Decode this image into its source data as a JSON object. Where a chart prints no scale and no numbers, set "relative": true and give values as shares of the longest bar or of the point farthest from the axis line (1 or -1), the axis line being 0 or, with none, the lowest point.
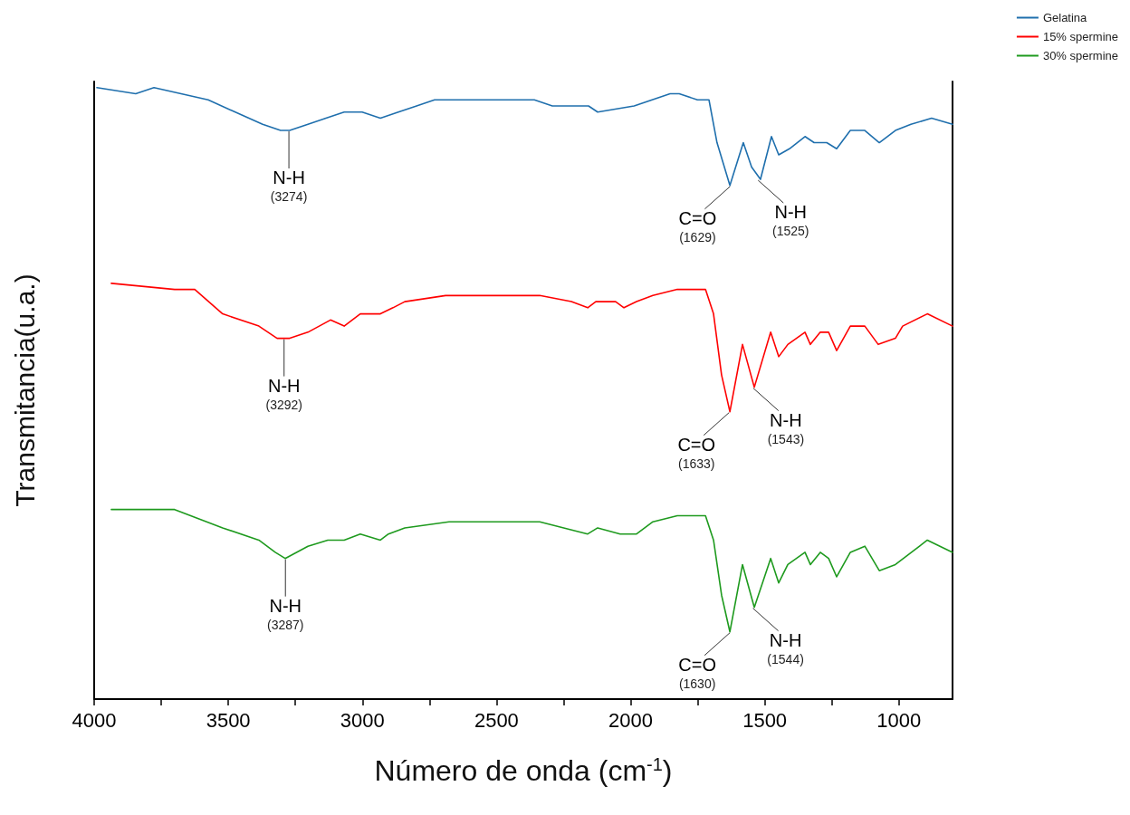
{
  "chart_data": {
    "type": "line",
    "relative": true,
    "xlabel": "Número de onda (cm$^{-1}$)",
    "ylabel": "Transmitancia(u.a.)",
    "xlim": [
      4000,
      800
    ],
    "xticks": [
      4000,
      {
        "value": 3750,
        "label": null
      },
      3500,
      {
        "value": 3250,
        "label": null
      },
      3000,
      {
        "value": 2750,
        "label": null
      },
      2500,
      {
        "value": 2250,
        "label": null
      },
      2000,
      {
        "value": 1750,
        "label": null
      },
      1500,
      {
        "value": 1250,
        "label": null
      },
      1000
    ],
    "grid": false,
    "legend": "top right",
    "marker": "none",
    "line_style": "solid",
    "series": [
      {
        "name": "Gelatina",
        "color": "#1f6fad",
        "x": [
          3990,
          3845,
          3777,
          3676,
          3575,
          3474,
          3372,
          3305,
          3271,
          3203,
          3136,
          3068,
          3001,
          2933,
          2866,
          2798,
          2731,
          2663,
          2562,
          2461,
          2359,
          2292,
          2157,
          2123,
          1987,
          1853,
          1819,
          1751,
          1708,
          1678,
          1630,
          1580,
          1549,
          1516,
          1475,
          1448,
          1408,
          1350,
          1316,
          1269,
          1232,
          1181,
          1127,
          1073,
          1013,
          955,
          878,
          800
        ],
        "values": [
          1.0,
          0.99,
          1.0,
          0.99,
          0.98,
          0.96,
          0.94,
          0.93,
          0.93,
          0.94,
          0.95,
          0.96,
          0.96,
          0.95,
          0.96,
          0.97,
          0.98,
          0.98,
          0.98,
          0.98,
          0.98,
          0.97,
          0.97,
          0.96,
          0.97,
          0.99,
          0.99,
          0.98,
          0.98,
          0.91,
          0.84,
          0.91,
          0.87,
          0.85,
          0.92,
          0.89,
          0.9,
          0.92,
          0.91,
          0.91,
          0.9,
          0.93,
          0.93,
          0.91,
          0.93,
          0.94,
          0.95,
          0.94
        ]
      },
      {
        "name": "15% spermine",
        "color": "#ff0000",
        "x": [
          3936,
          3700,
          3625,
          3521,
          3386,
          3318,
          3271,
          3203,
          3119,
          3068,
          3008,
          2933,
          2886,
          2842,
          2690,
          2461,
          2339,
          2221,
          2160,
          2130,
          2056,
          2025,
          1978,
          1917,
          1826,
          1721,
          1691,
          1661,
          1630,
          1583,
          1539,
          1478,
          1448,
          1414,
          1350,
          1330,
          1293,
          1262,
          1232,
          1181,
          1127,
          1077,
          1013,
          986,
          894,
          800
        ],
        "values": [
          0.68,
          0.67,
          0.67,
          0.63,
          0.61,
          0.59,
          0.59,
          0.6,
          0.62,
          0.61,
          0.63,
          0.63,
          0.64,
          0.65,
          0.66,
          0.66,
          0.66,
          0.65,
          0.64,
          0.65,
          0.65,
          0.64,
          0.65,
          0.66,
          0.67,
          0.67,
          0.63,
          0.53,
          0.47,
          0.58,
          0.51,
          0.6,
          0.56,
          0.58,
          0.6,
          0.58,
          0.6,
          0.6,
          0.57,
          0.61,
          0.61,
          0.58,
          0.59,
          0.61,
          0.63,
          0.61
        ]
      },
      {
        "name": "30% spermine",
        "color": "#1e9a1e",
        "x": [
          3936,
          3700,
          3521,
          3386,
          3325,
          3288,
          3203,
          3129,
          3068,
          3008,
          2933,
          2903,
          2842,
          2677,
          2586,
          2427,
          2339,
          2160,
          2123,
          2039,
          1978,
          1917,
          1826,
          1721,
          1691,
          1661,
          1630,
          1583,
          1539,
          1478,
          1448,
          1414,
          1350,
          1330,
          1293,
          1262,
          1232,
          1181,
          1127,
          1073,
          1013,
          894,
          800
        ],
        "values": [
          0.31,
          0.31,
          0.28,
          0.26,
          0.24,
          0.23,
          0.25,
          0.26,
          0.26,
          0.27,
          0.26,
          0.27,
          0.28,
          0.29,
          0.29,
          0.29,
          0.29,
          0.27,
          0.28,
          0.27,
          0.27,
          0.29,
          0.3,
          0.3,
          0.26,
          0.17,
          0.11,
          0.22,
          0.15,
          0.23,
          0.19,
          0.22,
          0.24,
          0.22,
          0.24,
          0.23,
          0.2,
          0.24,
          0.25,
          0.21,
          0.22,
          0.26,
          0.24
        ]
      }
    ],
    "annotations": [
      {
        "text": "N-H\n(3274)",
        "x": 3274,
        "y": 0.93
      },
      {
        "text": "C=O\n(1629)",
        "x": 1629,
        "y": 0.84
      },
      {
        "text": "N-H\n(1525)",
        "x": 1525,
        "y": 0.85
      },
      {
        "text": "N-H\n(3292)",
        "x": 3292,
        "y": 0.59
      },
      {
        "text": "C=O\n(1633)",
        "x": 1633,
        "y": 0.47
      },
      {
        "text": "N-H\n(1543)",
        "x": 1543,
        "y": 0.51
      },
      {
        "text": "N-H\n(3287)",
        "x": 3287,
        "y": 0.23
      },
      {
        "text": "C=O\n(1630)",
        "x": 1630,
        "y": 0.11
      },
      {
        "text": "N-H\n(1544)",
        "x": 1544,
        "y": 0.15
      }
    ]
  }
}
